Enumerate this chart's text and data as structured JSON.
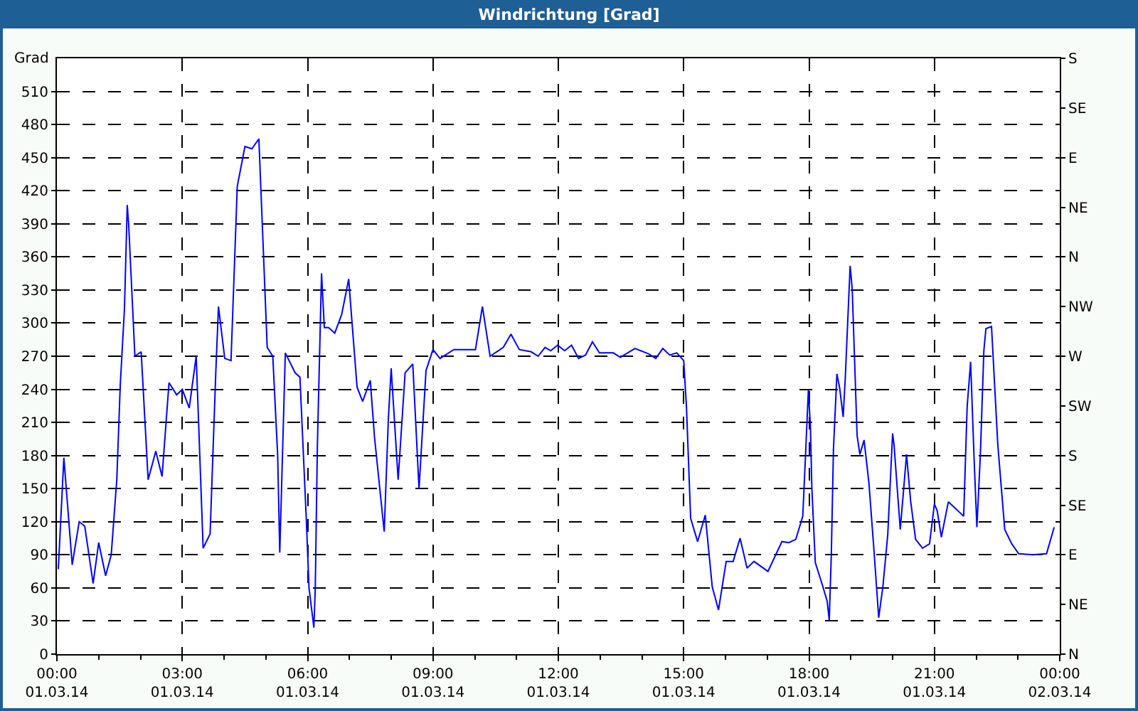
{
  "chart_data": {
    "type": "line",
    "title": "Windrichtung [Grad]",
    "ylabel": "Grad",
    "x": [
      "--03-01T00:02",
      "--03-01T00:10",
      "--03-01T00:22",
      "--03-01T00:32",
      "--03-01T00:40",
      "--03-01T00:52",
      "--03-01T01:00",
      "--03-01T01:10",
      "--03-01T01:18",
      "--03-01T01:26",
      "--03-01T01:31",
      "--03-01T01:37",
      "--03-01T01:41",
      "--03-01T01:43",
      "--03-01T01:52",
      "--03-01T02:01",
      "--03-01T02:11",
      "--03-01T02:22",
      "--03-01T02:31",
      "--03-01T02:41",
      "--03-01T02:52",
      "--03-01T03:00",
      "--03-01T03:10",
      "--03-01T03:20",
      "--03-01T03:30",
      "--03-01T03:40",
      "--03-01T03:48",
      "--03-01T03:52",
      "--03-01T04:01",
      "--03-01T04:10",
      "--03-01T04:19",
      "--03-01T04:30",
      "--03-01T04:40",
      "--03-01T04:50",
      "--03-01T05:02",
      "--03-01T05:10",
      "--03-01T05:17",
      "--03-01T05:20",
      "--03-01T05:28",
      "--03-01T05:42",
      "--03-01T05:49",
      "--03-01T05:58",
      "--03-01T06:02",
      "--03-01T06:09",
      "--03-01T06:11",
      "--03-01T06:14",
      "--03-01T06:20",
      "--03-01T06:24",
      "--03-01T06:30",
      "--03-01T06:39",
      "--03-01T06:49",
      "--03-01T06:59",
      "--03-01T07:02",
      "--03-01T07:11",
      "--03-01T07:19",
      "--03-01T07:30",
      "--03-01T07:36",
      "--03-01T07:50",
      "--03-01T07:56",
      "--03-01T08:00",
      "--03-01T08:10",
      "--03-01T08:20",
      "--03-01T08:31",
      "--03-01T08:40",
      "--03-01T08:50",
      "--03-01T09:00",
      "--03-01T09:10",
      "--03-01T09:30",
      "--03-01T10:01",
      "--03-01T10:11",
      "--03-01T10:22",
      "--03-01T10:41",
      "--03-01T10:52",
      "--03-01T11:04",
      "--03-01T11:21",
      "--03-01T11:31",
      "--03-01T11:41",
      "--03-01T11:49",
      "--03-01T11:59",
      "--03-01T12:09",
      "--03-01T12:19",
      "--03-01T12:29",
      "--03-01T12:39",
      "--03-01T12:49",
      "--03-01T12:59",
      "--03-01T13:19",
      "--03-01T13:29",
      "--03-01T13:50",
      "--03-01T14:10",
      "--03-01T14:20",
      "--03-01T14:30",
      "--03-01T14:40",
      "--03-01T14:50",
      "--03-01T15:00",
      "--03-01T15:04",
      "--03-01T15:10",
      "--03-01T15:20",
      "--03-01T15:31",
      "--03-01T15:41",
      "--03-01T15:50",
      "--03-01T16:01",
      "--03-01T16:11",
      "--03-01T16:21",
      "--03-01T16:31",
      "--03-01T16:41",
      "--03-01T17:01",
      "--03-01T17:21",
      "--03-01T17:31",
      "--03-01T17:41",
      "--03-01T17:51",
      "--03-01T17:55",
      "--03-01T17:59",
      "--03-01T18:02",
      "--03-01T18:04",
      "--03-01T18:09",
      "--03-01T18:19",
      "--03-01T18:26",
      "--03-01T18:29",
      "--03-01T18:32",
      "--03-01T18:35",
      "--03-01T18:40",
      "--03-01T18:44",
      "--03-01T18:49",
      "--03-01T18:52",
      "--03-01T18:59",
      "--03-01T19:02",
      "--03-01T19:09",
      "--03-01T19:13",
      "--03-01T19:19",
      "--03-01T19:26",
      "--03-01T19:33",
      "--03-01T19:40",
      "--03-01T19:46",
      "--03-01T19:53",
      "--03-01T20:00",
      "--03-01T20:02",
      "--03-01T20:07",
      "--03-01T20:11",
      "--03-01T20:20",
      "--03-01T20:26",
      "--03-01T20:33",
      "--03-01T20:43",
      "--03-01T20:53",
      "--03-01T21:00",
      "--03-01T21:04",
      "--03-01T21:10",
      "--03-01T21:20",
      "--03-01T21:37",
      "--03-01T21:42",
      "--03-01T21:47",
      "--03-01T21:52",
      "--03-01T21:57",
      "--03-01T22:01",
      "--03-01T22:06",
      "--03-01T22:11",
      "--03-01T22:14",
      "--03-01T22:22",
      "--03-01T22:31",
      "--03-01T22:41",
      "--03-01T22:51",
      "--03-01T23:01",
      "--03-01T23:21",
      "--03-01T23:41",
      "--03-01T23:52"
    ],
    "series": [
      {
        "color": "#0000ff",
        "values": [
          77,
          178,
          81,
          120,
          116,
          64,
          101,
          71,
          90,
          158,
          244,
          313,
          407,
          390,
          270,
          274,
          158,
          184,
          161,
          246,
          235,
          240,
          223,
          270,
          96,
          109,
          253,
          315,
          268,
          266,
          424,
          460,
          458,
          467,
          278,
          270,
          180,
          92,
          273,
          255,
          251,
          124,
          60,
          24,
          60,
          188,
          345,
          296,
          296,
          291,
          308,
          340,
          315,
          242,
          229,
          248,
          197,
          111,
          214,
          259,
          158,
          255,
          263,
          150,
          257,
          276,
          268,
          276,
          276,
          315,
          270,
          278,
          290,
          276,
          274,
          270,
          278,
          275,
          280,
          275,
          280,
          268,
          271,
          283,
          273,
          273,
          269,
          277,
          272,
          268,
          277,
          271,
          273,
          266,
          224,
          123,
          102,
          126,
          61,
          40,
          84,
          84,
          105,
          78,
          84,
          75,
          102,
          101,
          104,
          125,
          181,
          239,
          206,
          151,
          83,
          63,
          48,
          31,
          91,
          185,
          254,
          241,
          215,
          250,
          352,
          331,
          198,
          181,
          194,
          155,
          96,
          33,
          61,
          108,
          200,
          190,
          147,
          113,
          181,
          138,
          104,
          96,
          100,
          136,
          130,
          106,
          138,
          128,
          125,
          224,
          265,
          177,
          115,
          181,
          275,
          295,
          297,
          190,
          113,
          100,
          91,
          90,
          91,
          115
        ]
      }
    ],
    "xlim": [
      "--03-01T00:00",
      "--03-02T00:00"
    ],
    "xticks": [
      {
        "value": "--03-01T00:00",
        "label": "00:00\n01.03.14"
      },
      {
        "value": "--03-01T03:00",
        "label": "03:00\n01.03.14"
      },
      {
        "value": "--03-01T06:00",
        "label": "06:00\n01.03.14"
      },
      {
        "value": "--03-01T09:00",
        "label": "09:00\n01.03.14"
      },
      {
        "value": "--03-01T12:00",
        "label": "12:00\n01.03.14"
      },
      {
        "value": "--03-01T15:00",
        "label": "15:00\n01.03.14"
      },
      {
        "value": "--03-01T18:00",
        "label": "18:00\n01.03.14"
      },
      {
        "value": "--03-01T21:00",
        "label": "21:00\n01.03.14"
      },
      {
        "value": "--03-02T00:00",
        "label": "00:00\n02.03.14"
      }
    ],
    "ylim": [
      0,
      540
    ],
    "yticks": [
      0,
      30,
      60,
      90,
      120,
      150,
      180,
      210,
      240,
      270,
      300,
      330,
      360,
      390,
      420,
      450,
      480,
      510
    ],
    "y2_categories": [
      "S",
      "SE",
      "E",
      "NE",
      "N",
      "NW",
      "W",
      "SW",
      "S",
      "SE",
      "E",
      "NE",
      "N"
    ],
    "grid": true,
    "line_style": "solid",
    "marker": "none"
  }
}
